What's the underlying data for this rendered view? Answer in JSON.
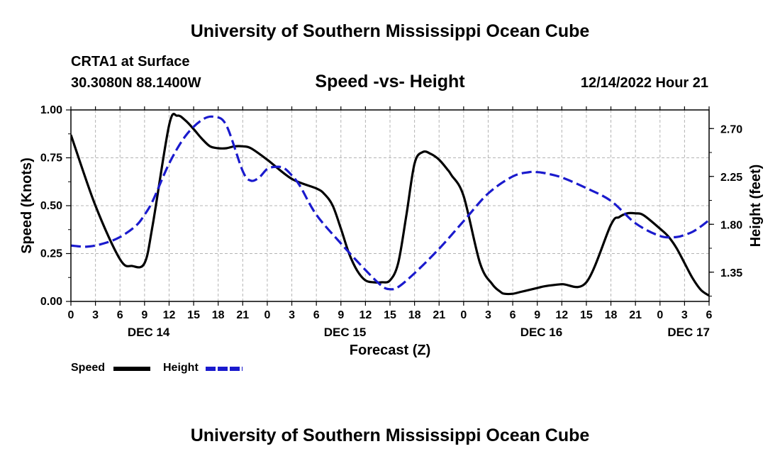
{
  "header": {
    "main_title": "University of Southern Mississippi Ocean Cube",
    "station": "CRTA1 at Surface",
    "coordinates": "30.3080N  88.1400W",
    "datetime": "12/14/2022 Hour 21"
  },
  "footer": {
    "title": "University of Southern Mississippi Ocean Cube"
  },
  "chart_data": {
    "type": "line",
    "title": "Speed -vs- Height",
    "xlabel": "Forecast (Z)",
    "ylabel": "Speed (Knots)",
    "y2label": "Height (feet)",
    "x_unit": "hours since 2022-12-14 00Z",
    "xlim": [
      0,
      78
    ],
    "ylim": [
      0,
      1.0
    ],
    "y2lim": [
      1.075,
      2.875
    ],
    "grid": true,
    "x_ticks": [
      0,
      3,
      6,
      9,
      12,
      15,
      18,
      21,
      24,
      27,
      30,
      33,
      36,
      39,
      42,
      45,
      48,
      51,
      54,
      57,
      60,
      63,
      66,
      69,
      72,
      75,
      78
    ],
    "x_tick_labels": [
      "0",
      "3",
      "6",
      "9",
      "12",
      "15",
      "18",
      "21",
      "0",
      "3",
      "6",
      "9",
      "12",
      "15",
      "18",
      "21",
      "0",
      "3",
      "6",
      "9",
      "12",
      "15",
      "18",
      "21",
      "0",
      "3",
      "6"
    ],
    "y_ticks": [
      0,
      0.25,
      0.5,
      0.75,
      1.0
    ],
    "y_tick_labels": [
      "0.00",
      "0.25",
      "0.50",
      "0.75",
      "1.00"
    ],
    "y2_ticks": [
      1.35,
      1.8,
      2.25,
      2.7
    ],
    "y2_tick_labels": [
      "1.35",
      "1.80",
      "2.25",
      "2.70"
    ],
    "day_labels": [
      {
        "x": 9.5,
        "label": "DEC 14"
      },
      {
        "x": 33.5,
        "label": "DEC 15"
      },
      {
        "x": 57.5,
        "label": "DEC 16"
      },
      {
        "x": 75.5,
        "label": "DEC 17"
      }
    ],
    "series": [
      {
        "name": "Speed",
        "axis": "left",
        "color": "#000000",
        "style": "solid",
        "x": [
          0,
          3,
          6,
          7.5,
          9,
          10,
          12,
          13,
          14,
          15,
          16,
          17,
          18,
          19,
          20,
          21,
          22,
          24,
          27,
          30,
          31,
          32,
          33,
          34,
          35,
          36,
          37,
          38,
          39,
          40,
          41,
          42,
          43,
          44,
          45,
          46,
          46.5,
          48,
          50,
          51.5,
          52.5,
          53,
          54,
          55,
          56,
          57,
          58,
          60,
          63,
          66,
          67,
          68,
          69,
          70,
          72,
          73,
          74,
          75,
          76,
          77,
          78
        ],
        "values": [
          0.87,
          0.5,
          0.22,
          0.185,
          0.2,
          0.4,
          0.92,
          0.97,
          0.945,
          0.9,
          0.85,
          0.81,
          0.8,
          0.8,
          0.81,
          0.81,
          0.8,
          0.74,
          0.64,
          0.59,
          0.56,
          0.5,
          0.38,
          0.25,
          0.16,
          0.11,
          0.1,
          0.1,
          0.11,
          0.2,
          0.45,
          0.72,
          0.78,
          0.77,
          0.74,
          0.69,
          0.66,
          0.55,
          0.2,
          0.09,
          0.05,
          0.04,
          0.04,
          0.05,
          0.06,
          0.07,
          0.08,
          0.09,
          0.1,
          0.4,
          0.44,
          0.46,
          0.46,
          0.45,
          0.38,
          0.34,
          0.28,
          0.2,
          0.12,
          0.06,
          0.03
        ]
      },
      {
        "name": "Height",
        "axis": "right",
        "color": "#1a1acd",
        "style": "dashed",
        "x": [
          0,
          2,
          4,
          6,
          8,
          9,
          10,
          12,
          14,
          16,
          17.5,
          19,
          21,
          22,
          23,
          24,
          25,
          26,
          27,
          28,
          30,
          33,
          36,
          38,
          39,
          40,
          42,
          45,
          48,
          51,
          54,
          56,
          57,
          58,
          60,
          63,
          66,
          69,
          72,
          74,
          75,
          76,
          77,
          78
        ],
        "values": [
          1.6,
          1.59,
          1.62,
          1.68,
          1.79,
          1.89,
          2.02,
          2.37,
          2.63,
          2.78,
          2.81,
          2.73,
          2.3,
          2.21,
          2.24,
          2.32,
          2.34,
          2.33,
          2.26,
          2.16,
          1.89,
          1.62,
          1.37,
          1.22,
          1.19,
          1.21,
          1.34,
          1.57,
          1.83,
          2.09,
          2.25,
          2.29,
          2.29,
          2.28,
          2.24,
          2.14,
          2.02,
          1.81,
          1.69,
          1.68,
          1.7,
          1.73,
          1.78,
          1.84
        ]
      }
    ]
  },
  "legend": {
    "speed_label": "Speed",
    "height_label": "Height",
    "speed_color": "#000000",
    "height_color": "#1a1acd"
  }
}
